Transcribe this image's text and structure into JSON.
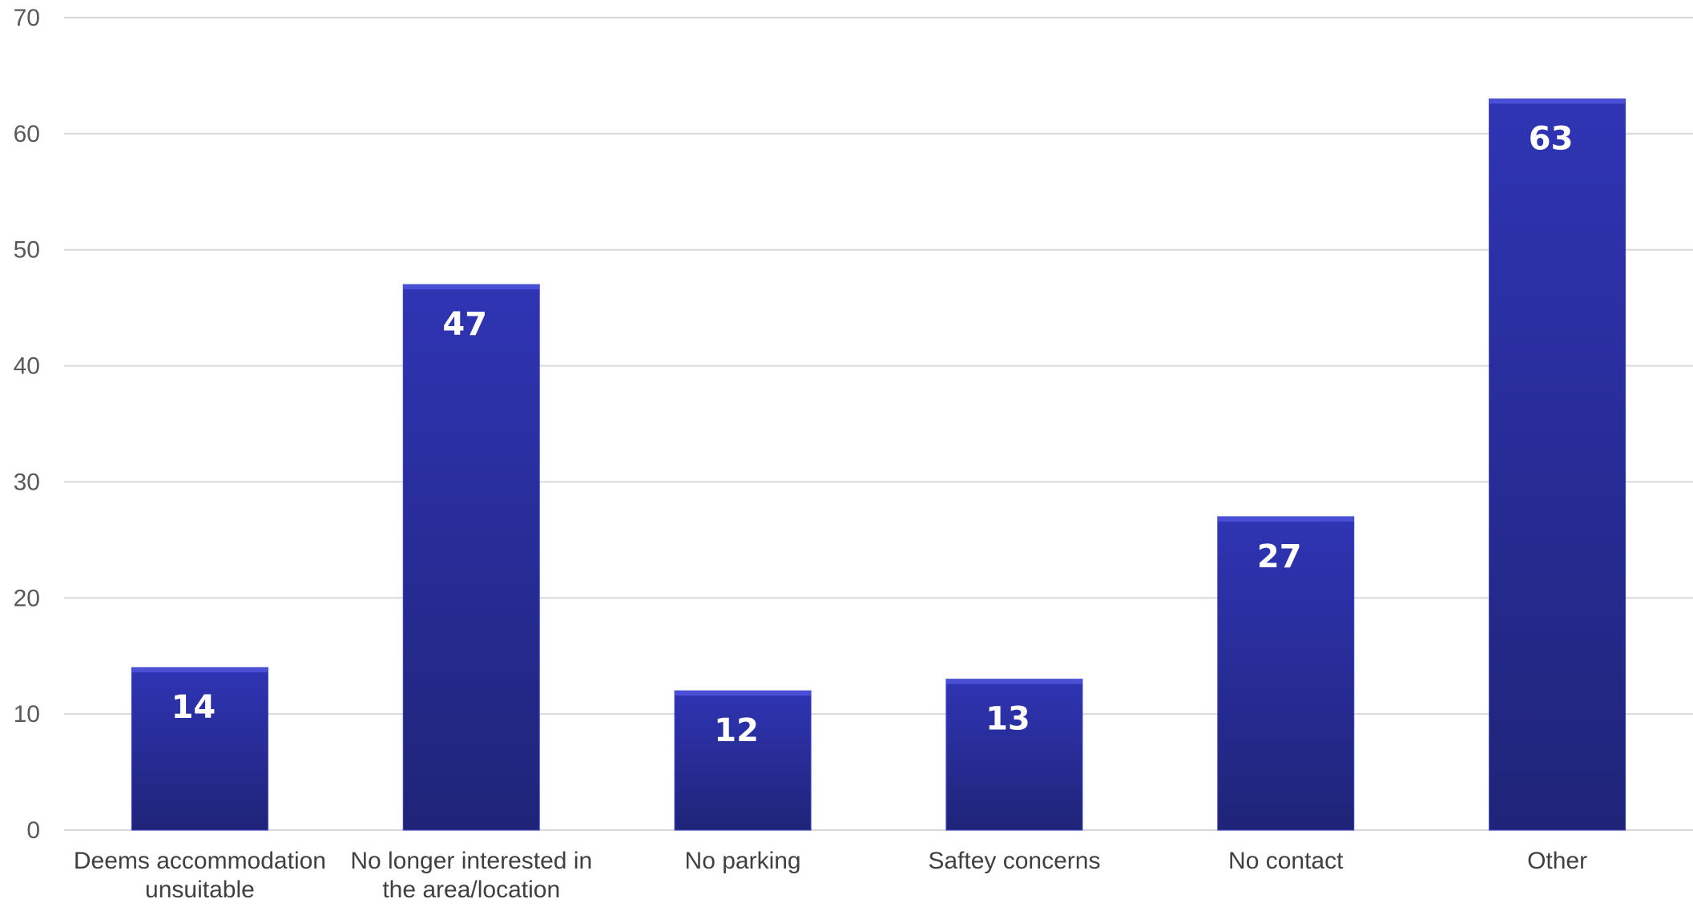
{
  "chart_data": {
    "type": "bar",
    "categories": [
      [
        "Deems accommodation",
        "unsuitable"
      ],
      [
        "No longer interested in",
        "the area/location"
      ],
      [
        "No parking"
      ],
      [
        "Saftey concerns"
      ],
      [
        "No contact"
      ],
      [
        "Other"
      ]
    ],
    "values": [
      14,
      47,
      12,
      13,
      27,
      63
    ],
    "data_labels": [
      "14",
      "47",
      "12",
      "13",
      "27",
      "63"
    ],
    "y_ticks": [
      "0",
      "10",
      "20",
      "30",
      "40",
      "50",
      "60",
      "70"
    ],
    "ylim": [
      0,
      70
    ],
    "grid": true,
    "legend": "none",
    "bar_color_top": "#2f34b4",
    "bar_color_bottom": "#1f2478",
    "grid_color": "#d9d9d9"
  }
}
